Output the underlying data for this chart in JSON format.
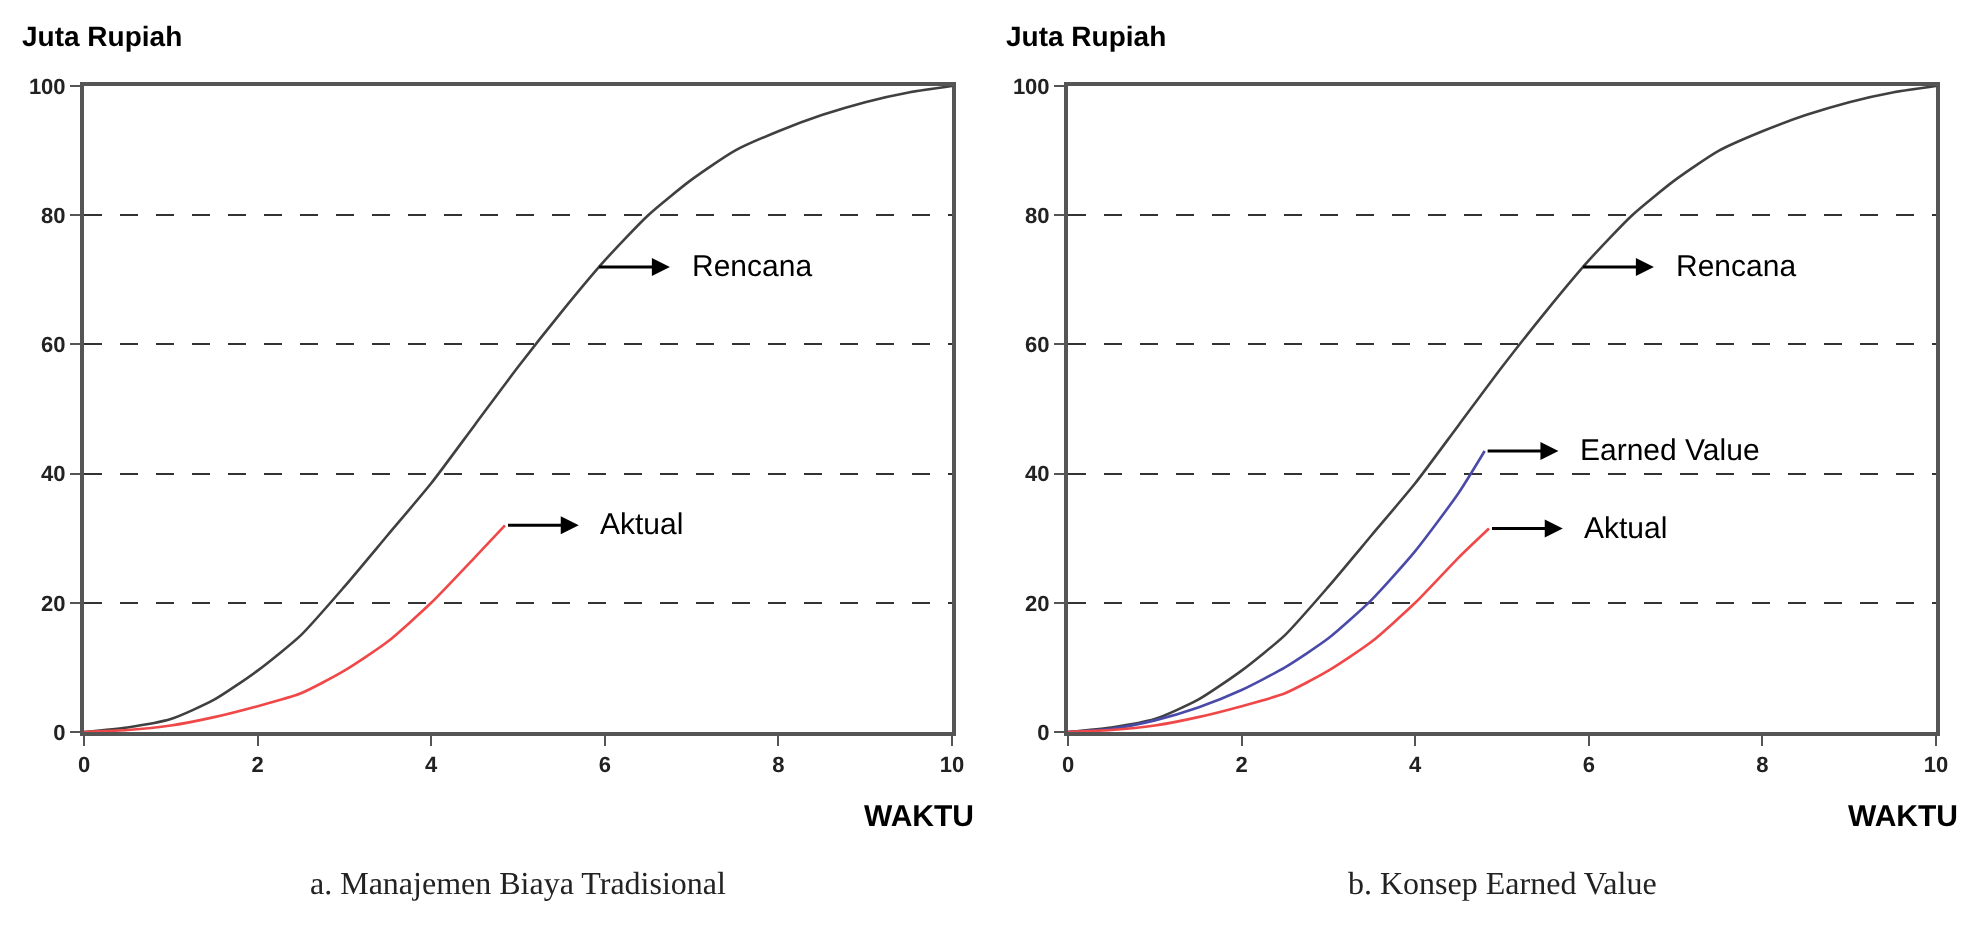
{
  "chart_data": [
    {
      "type": "line",
      "title": "a. Manajemen Biaya Tradisional",
      "xlabel": "WAKTU",
      "ylabel": "Juta Rupiah",
      "xlim": [
        0,
        10
      ],
      "ylim": [
        0,
        100
      ],
      "xticks": [
        0,
        2,
        4,
        6,
        8,
        10
      ],
      "yticks": [
        0,
        20,
        40,
        60,
        80,
        100
      ],
      "grid": "y",
      "line_style": "solid",
      "marker": "none",
      "series": [
        {
          "color": "#404040",
          "x": [
            0,
            0.5,
            1,
            1.5,
            2,
            2.5,
            3,
            3.5,
            4,
            4.5,
            5,
            5.5,
            6,
            6.5,
            7,
            7.5,
            8,
            8.5,
            9,
            9.5,
            10
          ],
          "values": [
            0,
            0.7,
            2,
            5,
            9.5,
            15,
            22.5,
            30.5,
            38.5,
            47.5,
            56.5,
            65,
            73,
            80,
            85.5,
            90,
            93,
            95.5,
            97.5,
            99,
            100
          ]
        },
        {
          "color": "#f04848",
          "x": [
            0,
            0.5,
            1,
            1.5,
            2,
            2.5,
            3,
            3.5,
            4,
            4.5,
            4.85
          ],
          "values": [
            0,
            0.3,
            1,
            2.3,
            4,
            6,
            9.5,
            14,
            20,
            27,
            32
          ]
        }
      ],
      "annotations": [
        {
          "text": "Rencana",
          "x": 5.9,
          "y": 72
        },
        {
          "text": "Aktual",
          "x": 4.85,
          "y": 32
        }
      ]
    },
    {
      "type": "line",
      "title": "b. Konsep Earned Value",
      "xlabel": "WAKTU",
      "ylabel": "Juta Rupiah",
      "xlim": [
        0,
        10
      ],
      "ylim": [
        0,
        100
      ],
      "xticks": [
        0,
        2,
        4,
        6,
        8,
        10
      ],
      "yticks": [
        0,
        20,
        40,
        60,
        80,
        100
      ],
      "grid": "y",
      "line_style": "solid",
      "marker": "none",
      "series": [
        {
          "color": "#404040",
          "x": [
            0,
            0.5,
            1,
            1.5,
            2,
            2.5,
            3,
            3.5,
            4,
            4.5,
            5,
            5.5,
            6,
            6.5,
            7,
            7.5,
            8,
            8.5,
            9,
            9.5,
            10
          ],
          "values": [
            0,
            0.7,
            2,
            5,
            9.5,
            15,
            22.5,
            30.5,
            38.5,
            47.5,
            56.5,
            65,
            73,
            80,
            85.5,
            90,
            93,
            95.5,
            97.5,
            99,
            100
          ]
        },
        {
          "color": "#4a4aa8",
          "x": [
            0,
            0.5,
            1,
            1.5,
            2,
            2.5,
            3,
            3.5,
            4,
            4.5,
            4.8
          ],
          "values": [
            0,
            0.5,
            1.8,
            3.8,
            6.5,
            10,
            14.5,
            20.5,
            28,
            37,
            43.5
          ]
        },
        {
          "color": "#f04848",
          "x": [
            0,
            0.5,
            1,
            1.5,
            2,
            2.5,
            3,
            3.5,
            4,
            4.5,
            4.85
          ],
          "values": [
            0,
            0.3,
            1,
            2.3,
            4,
            6,
            9.5,
            14,
            20,
            27,
            31.5
          ]
        }
      ],
      "annotations": [
        {
          "text": "Rencana",
          "x": 5.9,
          "y": 72
        },
        {
          "text": "Earned Value",
          "x": 4.8,
          "y": 43.5
        },
        {
          "text": "Aktual",
          "x": 4.85,
          "y": 31.5
        }
      ]
    }
  ]
}
